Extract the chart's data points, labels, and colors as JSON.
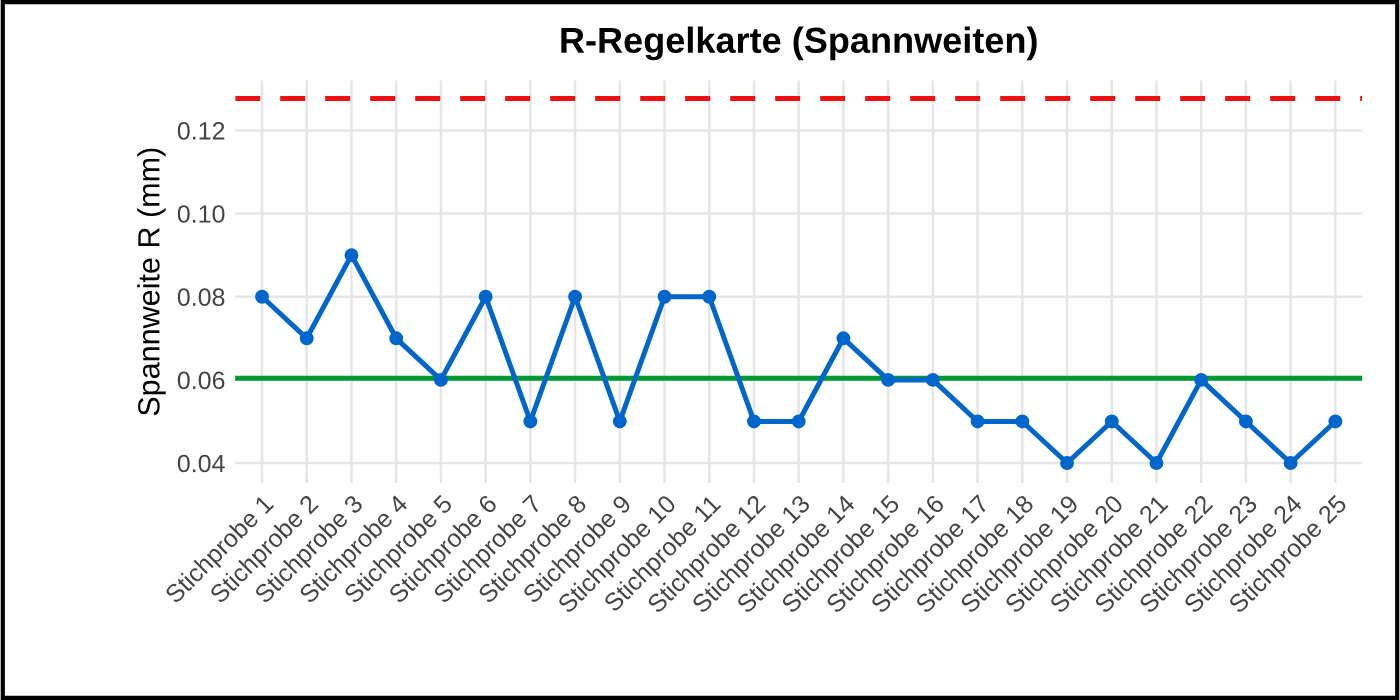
{
  "chart_data": {
    "type": "line",
    "title": "R-Regelkarte (Spannweiten)",
    "ylabel": "Spannweite R (mm)",
    "categories": [
      "Stichprobe 1",
      "Stichprobe 2",
      "Stichprobe 3",
      "Stichprobe 4",
      "Stichprobe 5",
      "Stichprobe 6",
      "Stichprobe 7",
      "Stichprobe 8",
      "Stichprobe 9",
      "Stichprobe 10",
      "Stichprobe 11",
      "Stichprobe 12",
      "Stichprobe 13",
      "Stichprobe 14",
      "Stichprobe 15",
      "Stichprobe 16",
      "Stichprobe 17",
      "Stichprobe 18",
      "Stichprobe 19",
      "Stichprobe 20",
      "Stichprobe 21",
      "Stichprobe 22",
      "Stichprobe 23",
      "Stichprobe 24",
      "Stichprobe 25"
    ],
    "series": [
      {
        "color": "#0066cc",
        "values": [
          0.08,
          0.07,
          0.09,
          0.07,
          0.06,
          0.08,
          0.05,
          0.08,
          0.05,
          0.08,
          0.08,
          0.05,
          0.05,
          0.07,
          0.06,
          0.06,
          0.05,
          0.05,
          0.04,
          0.05,
          0.04,
          0.06,
          0.05,
          0.04,
          0.05
        ]
      }
    ],
    "ref_lines": [
      {
        "axis": "y",
        "value": 0.0604,
        "color": "#009933",
        "line_style": "solid"
      },
      {
        "axis": "y",
        "value": 0.1277,
        "color": "#ee1111",
        "line_style": "dashed"
      }
    ],
    "ylim": [
      0.0352,
      0.132
    ],
    "yticks": [
      {
        "value": 0.04,
        "label": "0.04"
      },
      {
        "value": 0.06,
        "label": "0.06"
      },
      {
        "value": 0.08,
        "label": "0.08"
      },
      {
        "value": 0.1,
        "label": "0.10"
      },
      {
        "value": 0.12,
        "label": "0.12"
      }
    ],
    "grid": true,
    "marker": "circle",
    "line_style": "solid"
  }
}
